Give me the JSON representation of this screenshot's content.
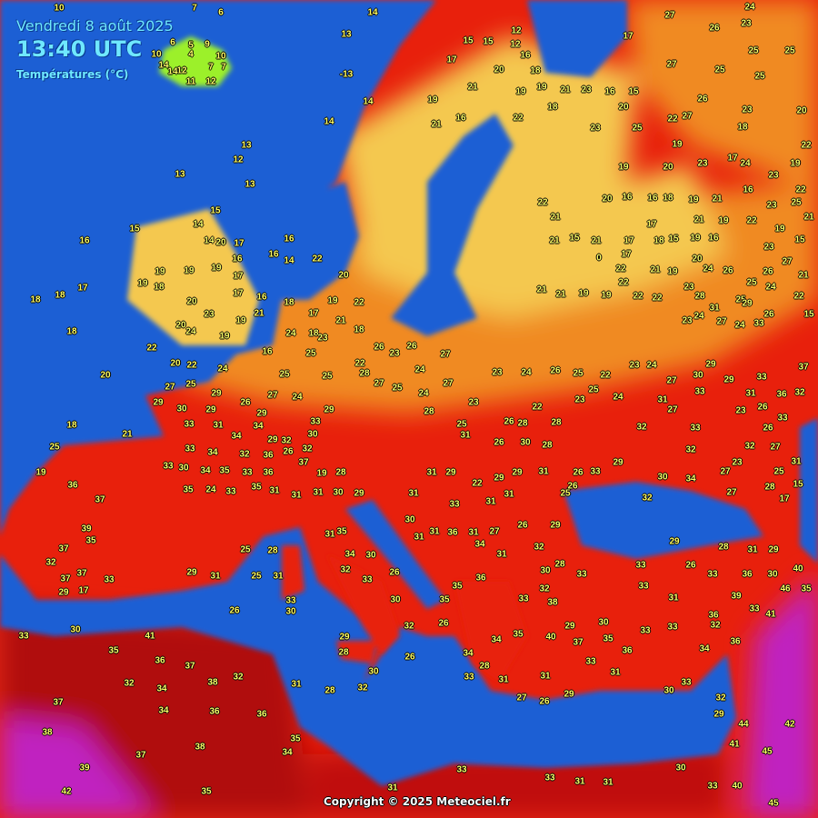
{
  "header": {
    "date": "Vendredi 8 août 2025",
    "time": "13:40 UTC",
    "subtitle": "Températures (°C)"
  },
  "footer": {
    "copyright": "Copyright © 2025 Meteociel.fr"
  },
  "colors": {
    "sea": "#1c5fd4",
    "cool_land": "#9cf02a",
    "mild": "#f4c850",
    "warm": "#f08a20",
    "hot": "#e8200c",
    "very_hot": "#b00808",
    "extreme": "#c020c0",
    "label": "#ffff66"
  },
  "stations": [
    10,
    7,
    14,
    12,
    13,
    6,
    -13,
    14,
    14,
    13,
    12,
    13,
    13,
    15,
    16,
    18,
    18,
    17,
    18,
    20,
    21,
    18,
    25,
    19,
    36,
    37,
    39,
    35,
    37,
    32,
    37,
    37,
    33,
    29,
    17,
    33,
    30,
    41,
    35,
    36,
    37,
    32,
    34,
    37,
    38,
    37,
    39,
    42,
    35,
    38,
    34,
    36,
    38,
    32,
    36,
    35,
    34,
    31,
    33,
    33,
    31,
    31,
    30,
    33,
    40,
    45,
    45,
    42,
    44,
    41,
    32,
    29,
    30,
    33,
    26,
    27,
    29,
    31,
    31,
    33,
    28,
    34,
    35,
    26,
    26,
    32,
    30,
    28,
    29,
    32,
    28,
    31,
    33,
    30,
    26,
    31,
    29,
    25,
    31,
    28,
    25,
    32,
    33,
    26,
    30,
    34,
    35,
    30,
    31,
    6,
    5,
    9,
    4,
    10,
    7,
    12,
    7,
    11,
    12,
    14,
    14,
    10,
    15,
    15,
    12,
    16,
    17,
    27,
    24,
    23,
    26,
    25,
    25,
    27,
    25,
    25,
    16,
    15,
    19,
    21,
    23,
    18,
    20,
    22,
    27,
    26,
    23,
    20,
    19,
    21,
    20,
    18,
    17,
    19,
    16,
    21,
    22,
    23,
    25,
    18,
    19,
    17,
    20,
    19,
    23,
    24,
    23,
    19,
    22,
    25,
    21,
    22,
    21,
    20,
    16,
    16,
    18,
    19,
    21,
    22,
    23,
    16,
    17,
    21,
    19,
    22,
    19,
    15,
    15,
    19,
    18,
    16,
    17,
    21,
    21,
    15,
    17,
    0,
    22,
    21,
    20,
    19,
    23,
    24,
    26,
    23,
    26,
    27,
    25,
    21,
    25,
    24,
    29,
    26,
    22,
    21,
    21,
    19,
    19,
    22,
    22,
    22,
    28,
    24,
    23,
    27,
    24,
    31,
    33,
    15,
    14,
    15,
    14,
    20,
    17,
    16,
    19,
    17,
    19,
    19,
    19,
    18,
    20,
    17,
    16,
    21,
    23,
    19,
    20,
    22,
    24,
    19,
    16,
    18,
    16,
    14,
    16,
    22,
    24,
    18,
    17,
    20,
    19,
    22,
    21,
    23,
    18,
    20,
    22,
    24,
    27,
    26,
    25,
    29,
    30,
    29,
    29,
    29,
    33,
    31,
    34,
    34,
    33,
    34,
    32,
    36,
    34,
    35,
    33,
    36,
    30,
    33,
    35,
    24,
    33,
    35,
    31,
    37,
    31,
    31,
    30,
    29,
    19,
    28,
    32,
    30,
    29,
    33,
    29,
    32,
    26,
    27,
    24,
    25,
    25,
    28,
    27,
    22,
    25,
    26,
    23,
    26,
    24,
    25,
    24,
    27,
    28,
    25,
    27,
    23,
    23,
    24,
    26,
    25,
    22,
    25,
    23,
    24,
    27,
    30,
    29,
    29,
    33,
    31,
    33,
    36,
    37,
    32,
    23,
    26,
    33,
    26,
    27,
    32,
    27,
    23,
    25,
    31,
    27,
    31,
    32,
    33,
    34,
    32,
    30,
    29,
    27,
    28,
    17,
    15,
    32,
    24,
    23,
    22,
    28,
    26,
    26,
    28,
    30,
    31,
    29,
    31,
    31,
    30,
    31,
    31,
    36,
    31,
    27,
    26,
    29,
    31,
    29,
    26,
    31,
    25,
    28,
    26,
    33,
    33,
    31,
    22,
    29,
    29,
    28,
    29,
    31,
    33,
    33,
    31,
    26,
    33,
    36,
    30,
    40,
    46,
    35,
    39,
    33,
    41,
    36,
    32,
    33,
    34,
    36,
    33,
    35,
    36,
    33,
    31,
    40,
    37,
    29,
    30,
    35,
    34,
    33,
    32,
    38,
    35,
    36,
    31,
    32,
    30,
    28,
    33,
    34
  ]
}
